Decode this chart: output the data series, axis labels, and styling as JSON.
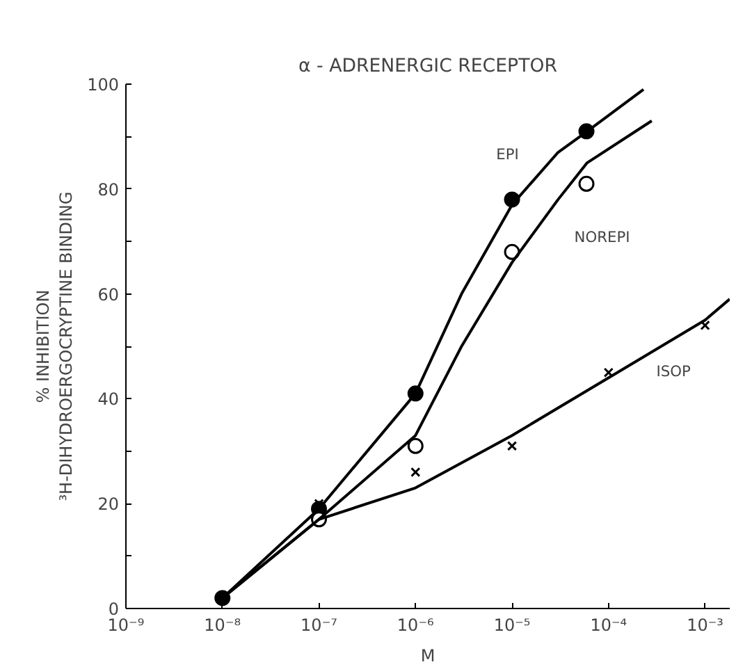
{
  "chart_data": {
    "type": "scatter",
    "title": "α - ADRENERGIC RECEPTOR",
    "xlabel": "M",
    "ylabel": "% INHIBITION\n³H-DIHYDROERGOCRYPTINE BINDING",
    "log": "x",
    "grid": false,
    "legend": false,
    "xlim": [
      1e-09,
      0.0018
    ],
    "ylim": [
      0,
      100
    ],
    "xticks": [
      {
        "value": 1e-09,
        "label": "10⁻⁹"
      },
      {
        "value": 1e-08,
        "label": "10⁻⁸"
      },
      {
        "value": 1e-07,
        "label": "10⁻⁷"
      },
      {
        "value": 1e-06,
        "label": "10⁻⁶"
      },
      {
        "value": 1e-05,
        "label": "10⁻⁵"
      },
      {
        "value": 0.0001,
        "label": "10⁻⁴"
      },
      {
        "value": 0.001,
        "label": "10⁻³"
      }
    ],
    "yticks": [
      0,
      {
        "value": 10,
        "label": null
      },
      20,
      {
        "value": 30,
        "label": null
      },
      40,
      {
        "value": 50,
        "label": null
      },
      60,
      {
        "value": 70,
        "label": null
      },
      80,
      {
        "value": 90,
        "label": null
      },
      100
    ],
    "series": [
      {
        "name": "EPI",
        "marker": "circle",
        "color": "#000000",
        "x": [
          1e-08,
          1e-07,
          1e-06,
          1e-05,
          5.9e-05
        ],
        "values": [
          2,
          19,
          41,
          78,
          91
        ]
      },
      {
        "name": "NOREPI",
        "marker": "circle",
        "color": "#ffffff",
        "x": [
          1e-07,
          1e-06,
          1e-05,
          5.9e-05
        ],
        "values": [
          17,
          31,
          68,
          81
        ]
      },
      {
        "name": "ISOP",
        "marker": "cross",
        "color": "#000000",
        "x": [
          1e-07,
          1e-06,
          1e-05,
          0.0001,
          0.001
        ],
        "values": [
          20,
          26,
          31,
          45,
          54
        ]
      },
      {
        "type": "line",
        "marker": "none",
        "color": "#000000",
        "x": [
          1e-08,
          1e-07,
          1e-06,
          3e-06,
          1e-05,
          3e-05,
          6e-05,
          0.00023
        ],
        "values": [
          2,
          19,
          41,
          60,
          77,
          87,
          91,
          99
        ]
      },
      {
        "type": "line",
        "marker": "none",
        "color": "#000000",
        "x": [
          1e-08,
          1e-07,
          1e-06,
          3e-06,
          1e-05,
          3e-05,
          6e-05,
          0.00028
        ],
        "values": [
          2,
          17,
          33,
          50,
          66,
          78,
          85,
          93
        ]
      },
      {
        "type": "line",
        "marker": "none",
        "color": "#000000",
        "x": [
          1e-08,
          1e-07,
          1e-06,
          1e-05,
          0.0001,
          0.001,
          0.0018
        ],
        "values": [
          2,
          17,
          23,
          33,
          44,
          55,
          59
        ]
      }
    ]
  }
}
